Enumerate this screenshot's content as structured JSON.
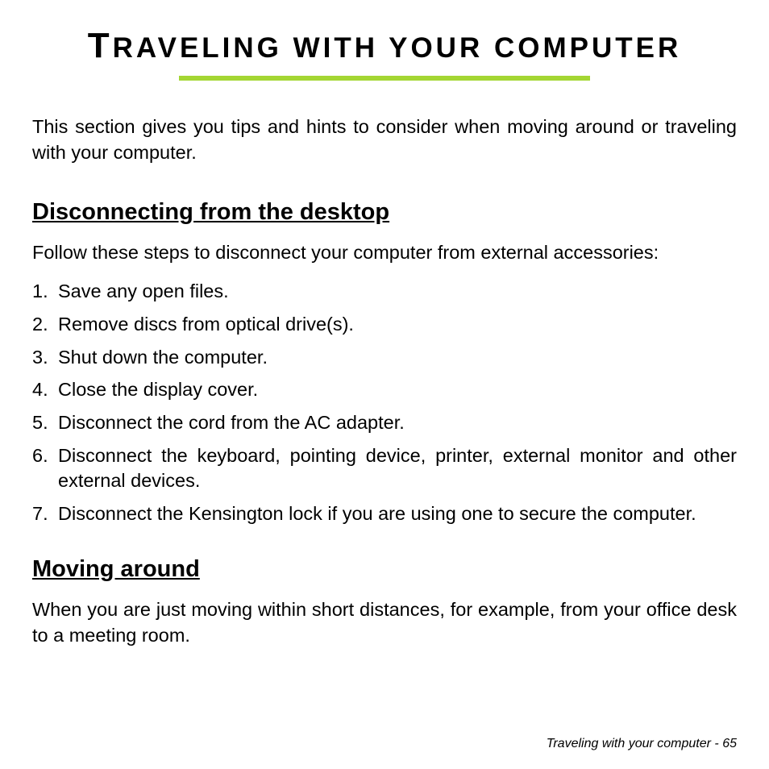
{
  "title": {
    "first_letter": "T",
    "rest": "RAVELING WITH YOUR COMPUTER"
  },
  "intro": "This section gives you tips and hints to consider when moving around or traveling with your computer.",
  "section1": {
    "heading": "Disconnecting from the desktop",
    "intro": "Follow these steps to disconnect your computer from external accessories:",
    "steps": [
      "Save any open files.",
      "Remove discs from optical drive(s).",
      "Shut down the computer.",
      "Close the display cover.",
      "Disconnect the cord from the AC adapter.",
      "Disconnect the keyboard, pointing device, printer, external monitor and other external devices.",
      "Disconnect the Kensington lock if you are using one to secure the computer."
    ]
  },
  "section2": {
    "heading": "Moving around",
    "intro": "When you are just moving within short distances, for example, from your office desk to a meeting room."
  },
  "footer": "Traveling with your computer -  65",
  "colors": {
    "accent": "#a4d633",
    "text": "#000000",
    "background": "#ffffff"
  },
  "typography": {
    "title_fontsize": 35,
    "title_first_letter_fontsize": 44,
    "body_fontsize": 23.5,
    "heading_fontsize": 29,
    "footer_fontsize": 16
  }
}
